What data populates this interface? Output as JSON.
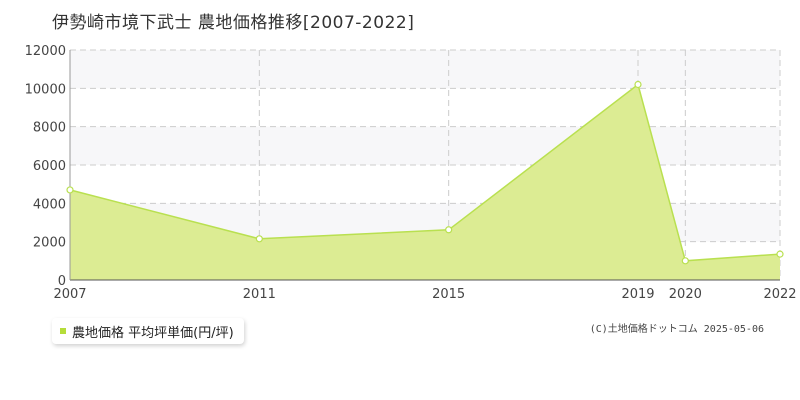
{
  "chart_data": {
    "type": "area",
    "title": "伊勢崎市境下武士 農地価格推移[2007-2022]",
    "x": [
      2007,
      2011,
      2015,
      2019,
      2020,
      2022
    ],
    "series": [
      {
        "name": "農地価格 平均坪単価(円/坪)",
        "values": [
          4700,
          2150,
          2620,
          10200,
          1000,
          1350
        ]
      }
    ],
    "x_ticks": [
      "2007",
      "2011",
      "2015",
      "2019",
      "2020",
      "2022"
    ],
    "y_ticks": [
      "0",
      "2000",
      "4000",
      "6000",
      "8000",
      "10000",
      "12000"
    ],
    "xlim": [
      2007,
      2022
    ],
    "ylim": [
      0,
      12000
    ],
    "grid": true,
    "legend_position": "bottom-left",
    "colors": {
      "fill": "#dcec93",
      "line": "#b9e050",
      "marker_fill": "#ffffff",
      "band": "#f7f7f9",
      "grid": "#cccccc"
    }
  },
  "credit": "(C)土地価格ドットコム 2025-05-06"
}
